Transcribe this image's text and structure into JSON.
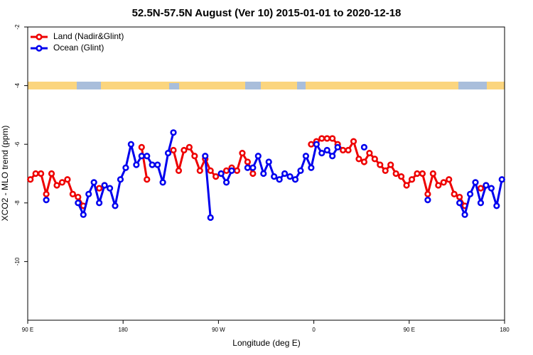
{
  "chart_data": {
    "type": "line",
    "title": "52.5N-57.5N August (Ver 10)   2015-01-01 to 2020-12-18",
    "x_label": "Longitude (deg E)",
    "y_label": "XCO2 - MLO trend (ppm)",
    "legend": "topleft",
    "xlim": [
      90,
      540
    ],
    "ylim": [
      -12,
      -2
    ],
    "xticks": [
      {
        "value": 90,
        "label": "90 E"
      },
      {
        "value": 180,
        "label": "180"
      },
      {
        "value": 270,
        "label": "90 W"
      },
      {
        "value": 360,
        "label": "0"
      },
      {
        "value": 450,
        "label": "90 E"
      },
      {
        "value": 540,
        "label": "180"
      }
    ],
    "yticks": [
      -2,
      -4,
      -6,
      -8,
      -10
    ],
    "x": [
      92.5,
      97.5,
      102.5,
      107.5,
      112.5,
      117.5,
      122.5,
      127.5,
      132.5,
      137.5,
      142.5,
      147.5,
      152.5,
      157.5,
      162.5,
      167.5,
      172.5,
      177.5,
      182.5,
      187.5,
      192.5,
      197.5,
      202.5,
      207.5,
      212.5,
      217.5,
      222.5,
      227.5,
      232.5,
      237.5,
      242.5,
      247.5,
      252.5,
      257.5,
      262.5,
      267.5,
      272.5,
      277.5,
      282.5,
      287.5,
      292.5,
      297.5,
      302.5,
      307.5,
      312.5,
      317.5,
      322.5,
      327.5,
      332.5,
      337.5,
      342.5,
      347.5,
      352.5,
      357.5,
      362.5,
      367.5,
      372.5,
      377.5,
      382.5,
      387.5,
      392.5,
      397.5,
      402.5,
      407.5,
      412.5,
      417.5,
      422.5,
      427.5,
      432.5,
      437.5,
      442.5,
      447.5,
      452.5,
      457.5,
      462.5,
      467.5,
      472.5,
      477.5,
      482.5,
      487.5,
      492.5,
      497.5,
      502.5,
      507.5,
      512.5,
      517.5,
      522.5,
      527.5,
      532.5,
      537.5
    ],
    "series": [
      {
        "name": "Land (Nadir&Glint)",
        "color": "#ee0000",
        "values": [
          -7.2,
          -7.0,
          -7.0,
          -7.7,
          -7.0,
          -7.4,
          -7.3,
          -7.2,
          -7.7,
          -7.8,
          -8.1,
          null,
          null,
          -7.5,
          -7.4,
          null,
          null,
          null,
          null,
          null,
          null,
          -6.1,
          -7.2,
          null,
          null,
          null,
          null,
          -6.2,
          -6.9,
          -6.2,
          -6.1,
          -6.4,
          -6.9,
          -6.5,
          -6.9,
          -7.1,
          -7.0,
          -6.9,
          -6.8,
          -6.9,
          -6.3,
          -6.6,
          -7.0,
          null,
          null,
          null,
          null,
          null,
          null,
          null,
          null,
          null,
          null,
          -6.0,
          -5.9,
          -5.8,
          -5.8,
          -5.8,
          -6.0,
          -6.2,
          -6.2,
          -5.9,
          -6.5,
          -6.6,
          -6.3,
          -6.5,
          -6.7,
          -6.9,
          -6.7,
          -7.0,
          -7.1,
          -7.4,
          -7.2,
          -7.0,
          -7.0,
          -7.7,
          -7.0,
          -7.4,
          -7.3,
          -7.2,
          -7.7,
          -7.8,
          -8.1,
          null,
          null,
          -7.5,
          -7.4,
          null,
          null,
          null
        ]
      },
      {
        "name": "Ocean (Glint)",
        "color": "#0000ee",
        "values": [
          null,
          null,
          null,
          -7.9,
          null,
          null,
          null,
          null,
          null,
          -8.0,
          -8.4,
          -7.7,
          -7.3,
          -8.0,
          -7.4,
          -7.5,
          -8.1,
          -7.2,
          -6.8,
          -6.0,
          -6.7,
          -6.4,
          -6.4,
          -6.7,
          -6.7,
          -7.3,
          -6.3,
          -5.6,
          null,
          null,
          null,
          null,
          null,
          -6.4,
          -8.5,
          null,
          -7.0,
          -7.3,
          -6.9,
          null,
          null,
          -6.8,
          -6.8,
          -6.4,
          -7.0,
          -6.6,
          -7.1,
          -7.2,
          -7.0,
          -7.1,
          -7.2,
          -6.9,
          -6.4,
          -6.8,
          -6.0,
          -6.3,
          -6.2,
          -6.4,
          -6.1,
          null,
          null,
          null,
          null,
          -6.1,
          null,
          null,
          null,
          null,
          null,
          null,
          null,
          null,
          null,
          null,
          null,
          -7.9,
          null,
          null,
          null,
          null,
          null,
          -8.0,
          -8.4,
          -7.7,
          -7.3,
          -8.0,
          -7.4,
          -7.5,
          -8.1,
          -7.2
        ]
      }
    ]
  }
}
